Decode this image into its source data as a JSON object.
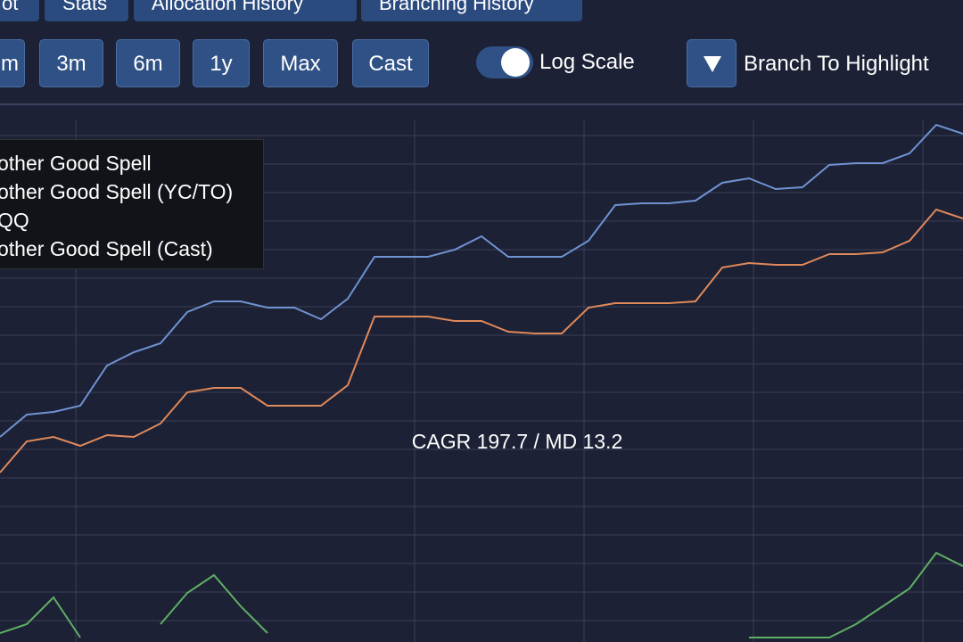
{
  "tabs": [
    "ot",
    "Stats",
    "Allocation History",
    "Branching History"
  ],
  "range_buttons": [
    "m",
    "3m",
    "6m",
    "1y",
    "Max",
    "Cast"
  ],
  "toggle": {
    "label": "Log Scale"
  },
  "dropdown": {
    "label": "Branch To Highlight"
  },
  "chart_data": {
    "type": "line",
    "legend": [
      "other Good Spell",
      "other Good Spell (YC/TO)",
      "QQ",
      "other Good Spell (Cast)"
    ],
    "annotation": "CAGR 197.7 / MD 13.2",
    "ylim": [
      0,
      600
    ],
    "series": [
      {
        "color": "#6f93d2",
        "values": [
          230,
          255,
          258,
          265,
          310,
          325,
          335,
          370,
          382,
          382,
          375,
          375,
          362,
          385,
          432,
          432,
          432,
          440,
          455,
          432,
          432,
          432,
          450,
          490,
          492,
          492,
          495,
          515,
          520,
          508,
          510,
          535,
          537,
          537,
          548,
          580,
          570
        ]
      },
      {
        "color": "#e0895a",
        "values": [
          190,
          225,
          230,
          220,
          232,
          230,
          245,
          280,
          285,
          285,
          265,
          265,
          265,
          288,
          365,
          365,
          365,
          360,
          360,
          348,
          346,
          346,
          375,
          380,
          380,
          380,
          382,
          420,
          425,
          423,
          423,
          435,
          435,
          437,
          450,
          485,
          475
        ]
      },
      {
        "color": "#5fae64",
        "values": [
          10,
          20,
          50,
          5,
          null,
          null,
          20,
          55,
          75,
          40,
          10,
          null,
          null,
          null,
          null,
          null,
          null,
          null,
          null,
          null,
          null,
          null,
          null,
          null,
          null,
          null,
          null,
          null,
          5,
          5,
          5,
          5,
          20,
          40,
          60,
          100,
          85
        ]
      }
    ]
  }
}
